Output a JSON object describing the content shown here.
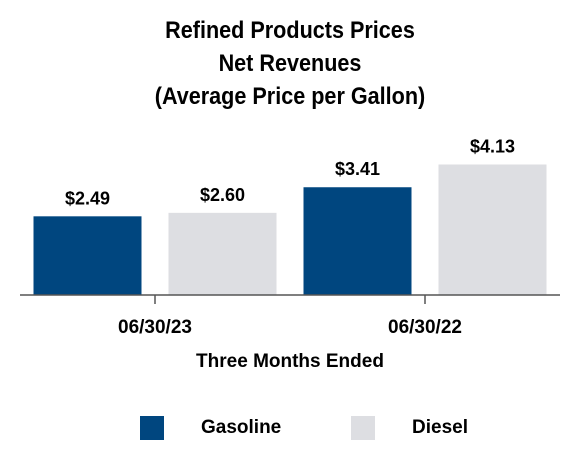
{
  "chart_data": {
    "type": "bar",
    "title_lines": [
      "Refined Products Prices",
      "Net Revenues",
      "(Average Price per Gallon)"
    ],
    "xlabel": "Three Months Ended",
    "ylabel": "",
    "categories": [
      "06/30/23",
      "06/30/22"
    ],
    "series": [
      {
        "name": "Gasoline",
        "values": [
          2.49,
          3.41
        ],
        "labels": [
          "$2.49",
          "$3.41"
        ],
        "color": "#00467f"
      },
      {
        "name": "Diesel",
        "values": [
          2.6,
          4.13
        ],
        "labels": [
          "$2.60",
          "$4.13"
        ],
        "color": "#dddee2"
      }
    ],
    "ylim": [
      0,
      4.5
    ],
    "grid": false,
    "legend_position": "bottom"
  }
}
